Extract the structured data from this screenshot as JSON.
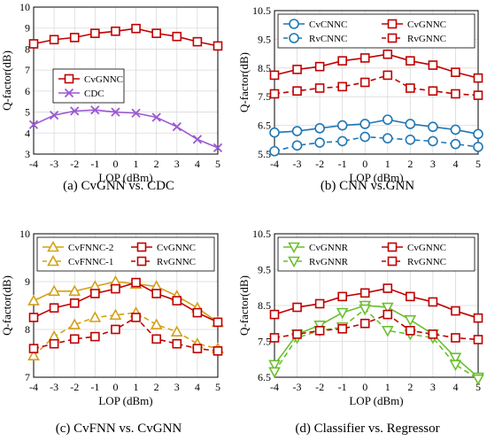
{
  "chart_data": [
    {
      "type": "line",
      "caption": "(a) CvGNN vs. CDC",
      "xlabel": "LOP (dBm)",
      "ylabel": "Q-factor(dB)",
      "x": [
        -4,
        -3,
        -2,
        -1,
        0,
        1,
        2,
        3,
        4,
        5
      ],
      "xticks": [
        "-4",
        "-3",
        "-2",
        "-1",
        "0",
        "1",
        "2",
        "3",
        "4",
        "5"
      ],
      "xlim": [
        -4,
        5
      ],
      "ylim": [
        3,
        10
      ],
      "yticks": [
        "3",
        "4",
        "5",
        "6",
        "7",
        "8",
        "9",
        "10"
      ],
      "grid": true,
      "legend_position": "center-left",
      "series": [
        {
          "name": "CvGNNC",
          "color": "#c00000",
          "marker": "square",
          "dash": false,
          "values": [
            8.25,
            8.45,
            8.55,
            8.75,
            8.85,
            8.98,
            8.75,
            8.6,
            8.35,
            8.15
          ]
        },
        {
          "name": "CDC",
          "color": "#9b59d0",
          "marker": "x",
          "dash": false,
          "values": [
            4.4,
            4.85,
            5.05,
            5.1,
            5.0,
            4.95,
            4.75,
            4.3,
            3.7,
            3.3
          ]
        }
      ]
    },
    {
      "type": "line",
      "caption": "(b) CNN vs.GNN",
      "xlabel": "LOP (dBm)",
      "ylabel": "Q-factor(dB)",
      "x": [
        -4,
        -3,
        -2,
        -1,
        0,
        1,
        2,
        3,
        4,
        5
      ],
      "xticks": [
        "-4",
        "-3",
        "-2",
        "-1",
        "0",
        "1",
        "2",
        "3",
        "4",
        "5"
      ],
      "xlim": [
        -4,
        5
      ],
      "ylim": [
        5.5,
        10.5
      ],
      "yticks": [
        "5.5",
        "6.5",
        "7.5",
        "8.5",
        "9.5",
        "10.5"
      ],
      "grid": true,
      "legend_position": "top",
      "series": [
        {
          "name": "CvCNNC",
          "color": "#1f77b4",
          "marker": "circle",
          "dash": false,
          "values": [
            6.25,
            6.3,
            6.4,
            6.5,
            6.55,
            6.7,
            6.55,
            6.45,
            6.35,
            6.2
          ]
        },
        {
          "name": "CvGNNC",
          "color": "#c00000",
          "marker": "square",
          "dash": false,
          "values": [
            8.25,
            8.45,
            8.55,
            8.75,
            8.85,
            8.98,
            8.75,
            8.6,
            8.35,
            8.15
          ]
        },
        {
          "name": "RvCNNC",
          "color": "#1f77b4",
          "marker": "circle",
          "dash": true,
          "values": [
            5.6,
            5.8,
            5.9,
            5.95,
            6.1,
            6.05,
            6.0,
            5.95,
            5.85,
            5.75
          ]
        },
        {
          "name": "RvGNNC",
          "color": "#c00000",
          "marker": "square",
          "dash": true,
          "values": [
            7.6,
            7.7,
            7.8,
            7.85,
            8.0,
            8.25,
            7.8,
            7.7,
            7.6,
            7.55
          ]
        }
      ]
    },
    {
      "type": "line",
      "caption": "(c) CvFNN vs. CvGNN",
      "xlabel": "LOP (dBm)",
      "ylabel": "Q-factor(dB)",
      "x": [
        -4,
        -3,
        -2,
        -1,
        0,
        1,
        2,
        3,
        4,
        5
      ],
      "xticks": [
        "-4",
        "-3",
        "-2",
        "-1",
        "0",
        "1",
        "2",
        "3",
        "4",
        "5"
      ],
      "xlim": [
        -4,
        5
      ],
      "ylim": [
        7,
        10
      ],
      "yticks": [
        "7",
        "8",
        "9",
        "10"
      ],
      "grid": true,
      "legend_position": "top",
      "series": [
        {
          "name": "CvFNNC-2",
          "color": "#d4a017",
          "marker": "triangle",
          "dash": false,
          "values": [
            8.6,
            8.8,
            8.8,
            8.9,
            9.0,
            8.95,
            8.9,
            8.7,
            8.45,
            8.15
          ]
        },
        {
          "name": "CvGNNC",
          "color": "#c00000",
          "marker": "square",
          "dash": false,
          "values": [
            8.25,
            8.45,
            8.55,
            8.75,
            8.85,
            8.98,
            8.75,
            8.6,
            8.35,
            8.15
          ]
        },
        {
          "name": "CvFNNC-1",
          "color": "#d4a017",
          "marker": "triangle",
          "dash": true,
          "values": [
            7.45,
            7.85,
            8.1,
            8.25,
            8.3,
            8.35,
            8.1,
            7.95,
            7.7,
            7.6
          ]
        },
        {
          "name": "RvGNNC",
          "color": "#c00000",
          "marker": "square",
          "dash": true,
          "values": [
            7.6,
            7.7,
            7.8,
            7.85,
            8.0,
            8.25,
            7.8,
            7.7,
            7.6,
            7.55
          ]
        }
      ]
    },
    {
      "type": "line",
      "caption": "(d) Classifier vs. Regressor",
      "xlabel": "LOP (dBm)",
      "ylabel": "Q-factor(dB)",
      "x": [
        -4,
        -3,
        -2,
        -1,
        0,
        1,
        2,
        3,
        4,
        5
      ],
      "xticks": [
        "-4",
        "-3",
        "-2",
        "-1",
        "0",
        "1",
        "2",
        "3",
        "4",
        "5"
      ],
      "xlim": [
        -4,
        5
      ],
      "ylim": [
        6.5,
        10.5
      ],
      "yticks": [
        "6.5",
        "7.5",
        "8.5",
        "9.5",
        "10.5"
      ],
      "grid": true,
      "legend_position": "top",
      "series": [
        {
          "name": "CvGNNR",
          "color": "#6abf2e",
          "marker": "triangle-down",
          "dash": false,
          "values": [
            6.85,
            7.7,
            7.95,
            8.3,
            8.5,
            8.45,
            8.1,
            7.7,
            7.05,
            6.5
          ]
        },
        {
          "name": "CvGNNC",
          "color": "#c00000",
          "marker": "square",
          "dash": false,
          "values": [
            8.25,
            8.45,
            8.55,
            8.75,
            8.85,
            8.98,
            8.75,
            8.6,
            8.35,
            8.15
          ]
        },
        {
          "name": "RvGNNR",
          "color": "#6abf2e",
          "marker": "triangle-down",
          "dash": true,
          "values": [
            6.65,
            7.6,
            7.8,
            7.9,
            8.4,
            7.8,
            7.7,
            7.6,
            6.85,
            6.45
          ]
        },
        {
          "name": "RvGNNC",
          "color": "#c00000",
          "marker": "square",
          "dash": true,
          "values": [
            7.6,
            7.7,
            7.8,
            7.85,
            8.0,
            8.25,
            7.8,
            7.7,
            7.6,
            7.55
          ]
        }
      ]
    }
  ]
}
